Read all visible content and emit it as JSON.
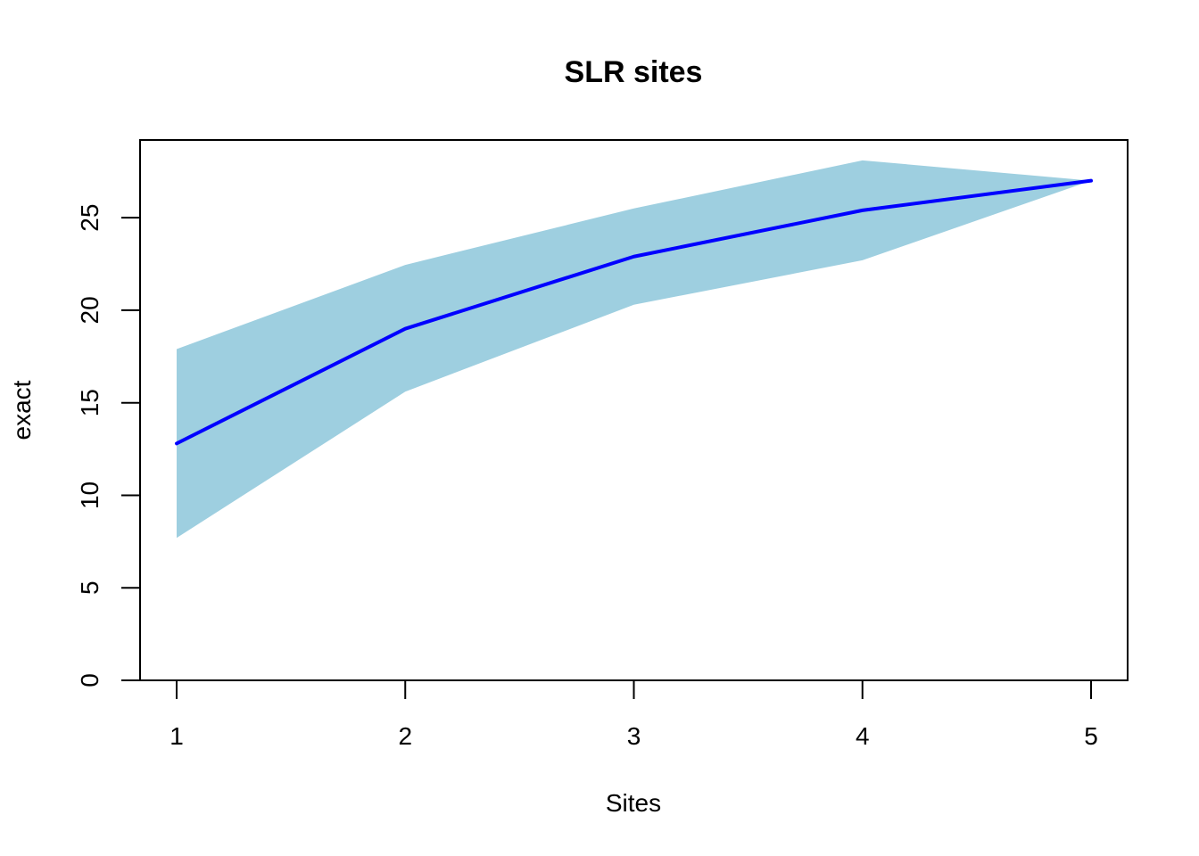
{
  "chart_data": {
    "type": "area",
    "title": "SLR sites",
    "xlabel": "Sites",
    "ylabel": "exact",
    "x": [
      1,
      2,
      3,
      4,
      5
    ],
    "series": [
      {
        "kind": "line",
        "values": [
          12.8,
          19.0,
          22.9,
          25.4,
          27.0
        ],
        "color": "#0000ff"
      },
      {
        "kind": "band",
        "upper": [
          17.9,
          22.45,
          25.5,
          28.1,
          27.0
        ],
        "lower": [
          7.7,
          15.6,
          20.3,
          22.7,
          27.0
        ],
        "color": "#9ecfe0"
      }
    ],
    "xticks": [
      1,
      2,
      3,
      4,
      5
    ],
    "yticks": [
      0,
      5,
      10,
      15,
      20,
      25
    ],
    "xlim": [
      0.84,
      5.16
    ],
    "ylim": [
      0,
      29.2
    ],
    "grid": false,
    "legend": "none"
  }
}
